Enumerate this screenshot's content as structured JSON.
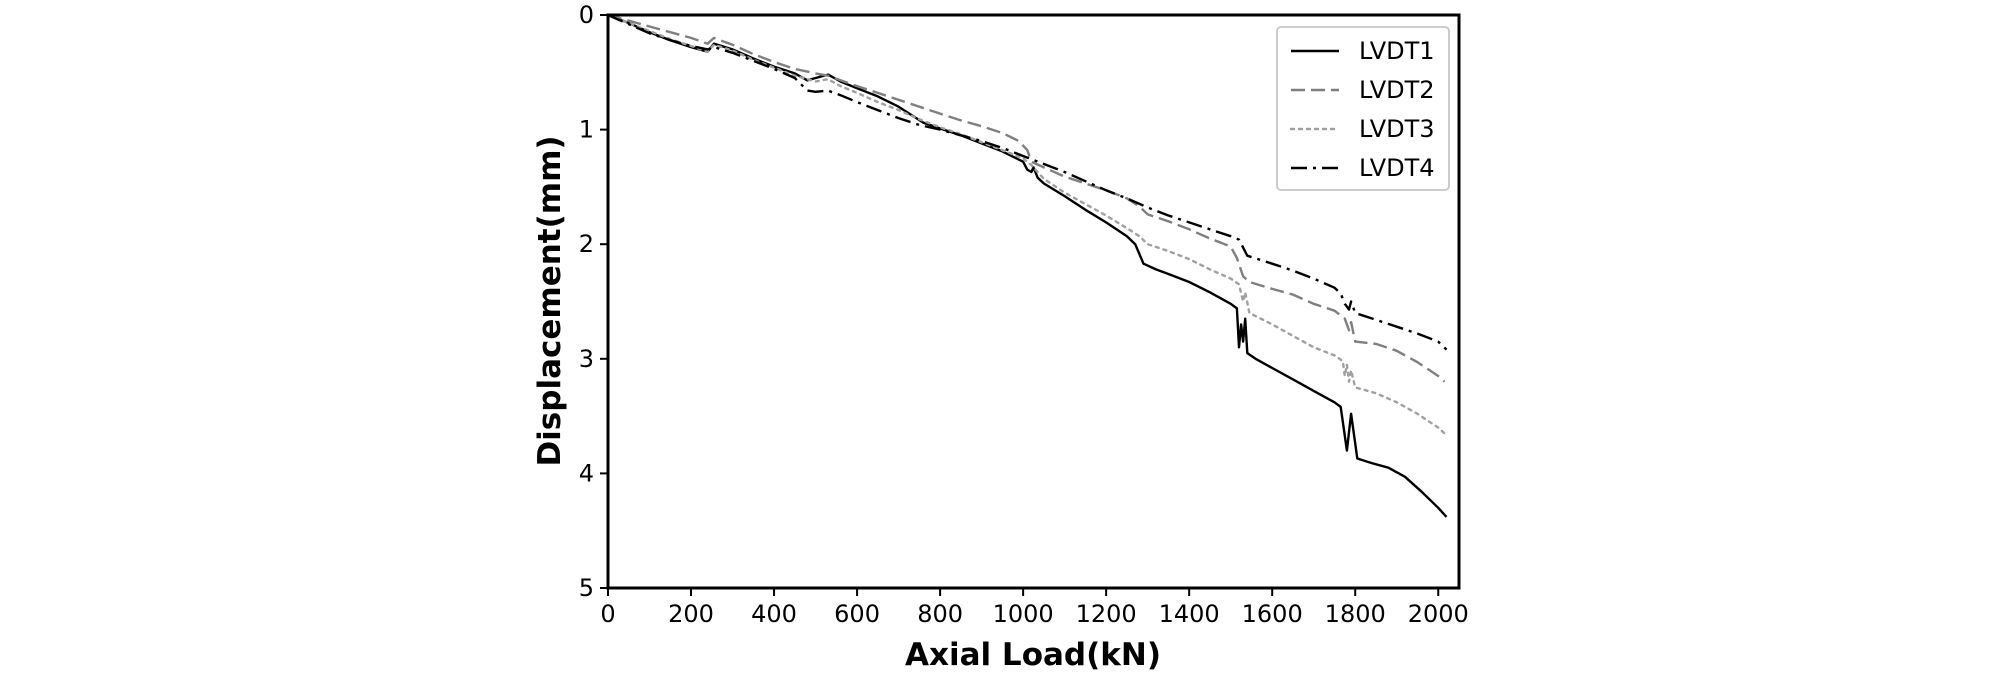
{
  "chart_data": {
    "type": "line",
    "xlabel": "Axial Load(kN)",
    "ylabel": "Displacement(mm)",
    "xlim": [
      0,
      2050
    ],
    "ylim": [
      0,
      5
    ],
    "y_inverted": true,
    "xticks": [
      0,
      200,
      400,
      600,
      800,
      1000,
      1200,
      1400,
      1600,
      1800,
      2000
    ],
    "yticks": [
      0,
      1,
      2,
      3,
      4,
      5
    ],
    "grid": false,
    "legend_position": "top-right",
    "series": [
      {
        "name": "LVDT1",
        "style": "solid",
        "color": "#000000",
        "points": [
          [
            0,
            0
          ],
          [
            50,
            0.07
          ],
          [
            100,
            0.15
          ],
          [
            150,
            0.22
          ],
          [
            200,
            0.28
          ],
          [
            240,
            0.32
          ],
          [
            255,
            0.25
          ],
          [
            300,
            0.3
          ],
          [
            350,
            0.38
          ],
          [
            400,
            0.45
          ],
          [
            450,
            0.51
          ],
          [
            480,
            0.57
          ],
          [
            500,
            0.55
          ],
          [
            530,
            0.52
          ],
          [
            560,
            0.58
          ],
          [
            600,
            0.64
          ],
          [
            650,
            0.71
          ],
          [
            700,
            0.8
          ],
          [
            730,
            0.87
          ],
          [
            760,
            0.94
          ],
          [
            800,
            0.99
          ],
          [
            850,
            1.05
          ],
          [
            900,
            1.12
          ],
          [
            950,
            1.19
          ],
          [
            1000,
            1.28
          ],
          [
            1010,
            1.35
          ],
          [
            1020,
            1.37
          ],
          [
            1025,
            1.33
          ],
          [
            1035,
            1.42
          ],
          [
            1050,
            1.47
          ],
          [
            1100,
            1.58
          ],
          [
            1150,
            1.7
          ],
          [
            1200,
            1.81
          ],
          [
            1250,
            1.93
          ],
          [
            1270,
            2.0
          ],
          [
            1290,
            2.17
          ],
          [
            1320,
            2.22
          ],
          [
            1350,
            2.26
          ],
          [
            1400,
            2.33
          ],
          [
            1450,
            2.42
          ],
          [
            1500,
            2.52
          ],
          [
            1515,
            2.56
          ],
          [
            1520,
            2.9
          ],
          [
            1525,
            2.7
          ],
          [
            1530,
            2.85
          ],
          [
            1535,
            2.65
          ],
          [
            1540,
            2.95
          ],
          [
            1560,
            3.0
          ],
          [
            1600,
            3.08
          ],
          [
            1650,
            3.18
          ],
          [
            1700,
            3.28
          ],
          [
            1750,
            3.38
          ],
          [
            1765,
            3.42
          ],
          [
            1780,
            3.8
          ],
          [
            1790,
            3.48
          ],
          [
            1805,
            3.87
          ],
          [
            1840,
            3.91
          ],
          [
            1880,
            3.95
          ],
          [
            1920,
            4.03
          ],
          [
            1960,
            4.16
          ],
          [
            2000,
            4.3
          ],
          [
            2020,
            4.38
          ]
        ]
      },
      {
        "name": "LVDT2",
        "style": "dashed",
        "color": "#7f7f7f",
        "points": [
          [
            0,
            0
          ],
          [
            50,
            0.05
          ],
          [
            100,
            0.1
          ],
          [
            150,
            0.15
          ],
          [
            200,
            0.2
          ],
          [
            240,
            0.25
          ],
          [
            255,
            0.2
          ],
          [
            300,
            0.26
          ],
          [
            350,
            0.34
          ],
          [
            400,
            0.41
          ],
          [
            450,
            0.47
          ],
          [
            500,
            0.51
          ],
          [
            530,
            0.53
          ],
          [
            560,
            0.57
          ],
          [
            600,
            0.62
          ],
          [
            650,
            0.68
          ],
          [
            700,
            0.74
          ],
          [
            750,
            0.8
          ],
          [
            800,
            0.86
          ],
          [
            850,
            0.92
          ],
          [
            900,
            0.97
          ],
          [
            950,
            1.03
          ],
          [
            990,
            1.1
          ],
          [
            1010,
            1.18
          ],
          [
            1020,
            1.28
          ],
          [
            1050,
            1.33
          ],
          [
            1100,
            1.41
          ],
          [
            1150,
            1.47
          ],
          [
            1200,
            1.53
          ],
          [
            1250,
            1.6
          ],
          [
            1280,
            1.67
          ],
          [
            1300,
            1.74
          ],
          [
            1350,
            1.8
          ],
          [
            1400,
            1.87
          ],
          [
            1450,
            1.95
          ],
          [
            1500,
            2.02
          ],
          [
            1515,
            2.12
          ],
          [
            1530,
            2.28
          ],
          [
            1545,
            2.33
          ],
          [
            1600,
            2.39
          ],
          [
            1650,
            2.44
          ],
          [
            1700,
            2.52
          ],
          [
            1750,
            2.58
          ],
          [
            1775,
            2.65
          ],
          [
            1785,
            2.75
          ],
          [
            1790,
            2.68
          ],
          [
            1800,
            2.85
          ],
          [
            1850,
            2.87
          ],
          [
            1900,
            2.93
          ],
          [
            1950,
            3.03
          ],
          [
            2000,
            3.15
          ],
          [
            2015,
            3.2
          ]
        ]
      },
      {
        "name": "LVDT3",
        "style": "dotted",
        "color": "#a0a0a0",
        "points": [
          [
            0,
            0
          ],
          [
            50,
            0.07
          ],
          [
            100,
            0.14
          ],
          [
            150,
            0.21
          ],
          [
            200,
            0.27
          ],
          [
            240,
            0.32
          ],
          [
            255,
            0.26
          ],
          [
            300,
            0.31
          ],
          [
            350,
            0.39
          ],
          [
            400,
            0.46
          ],
          [
            450,
            0.53
          ],
          [
            500,
            0.58
          ],
          [
            530,
            0.56
          ],
          [
            560,
            0.62
          ],
          [
            600,
            0.68
          ],
          [
            650,
            0.76
          ],
          [
            700,
            0.83
          ],
          [
            750,
            0.91
          ],
          [
            800,
            0.98
          ],
          [
            850,
            1.04
          ],
          [
            900,
            1.11
          ],
          [
            950,
            1.18
          ],
          [
            1000,
            1.25
          ],
          [
            1020,
            1.31
          ],
          [
            1050,
            1.43
          ],
          [
            1100,
            1.55
          ],
          [
            1150,
            1.65
          ],
          [
            1200,
            1.75
          ],
          [
            1250,
            1.86
          ],
          [
            1280,
            1.93
          ],
          [
            1300,
            2.0
          ],
          [
            1350,
            2.06
          ],
          [
            1400,
            2.13
          ],
          [
            1450,
            2.22
          ],
          [
            1500,
            2.3
          ],
          [
            1520,
            2.35
          ],
          [
            1530,
            2.5
          ],
          [
            1535,
            2.42
          ],
          [
            1545,
            2.6
          ],
          [
            1600,
            2.7
          ],
          [
            1650,
            2.8
          ],
          [
            1700,
            2.9
          ],
          [
            1750,
            2.97
          ],
          [
            1770,
            3.02
          ],
          [
            1775,
            3.15
          ],
          [
            1780,
            3.05
          ],
          [
            1785,
            3.2
          ],
          [
            1790,
            3.1
          ],
          [
            1800,
            3.25
          ],
          [
            1850,
            3.3
          ],
          [
            1900,
            3.38
          ],
          [
            1950,
            3.48
          ],
          [
            2000,
            3.6
          ],
          [
            2015,
            3.65
          ]
        ]
      },
      {
        "name": "LVDT4",
        "style": "dashdot",
        "color": "#000000",
        "points": [
          [
            0,
            0
          ],
          [
            50,
            0.08
          ],
          [
            100,
            0.16
          ],
          [
            150,
            0.22
          ],
          [
            200,
            0.27
          ],
          [
            240,
            0.3
          ],
          [
            255,
            0.28
          ],
          [
            300,
            0.33
          ],
          [
            350,
            0.4
          ],
          [
            400,
            0.47
          ],
          [
            450,
            0.55
          ],
          [
            480,
            0.66
          ],
          [
            500,
            0.67
          ],
          [
            530,
            0.66
          ],
          [
            560,
            0.7
          ],
          [
            600,
            0.76
          ],
          [
            650,
            0.83
          ],
          [
            700,
            0.9
          ],
          [
            750,
            0.96
          ],
          [
            800,
            1.0
          ],
          [
            850,
            1.05
          ],
          [
            900,
            1.1
          ],
          [
            950,
            1.16
          ],
          [
            1000,
            1.23
          ],
          [
            1050,
            1.3
          ],
          [
            1100,
            1.37
          ],
          [
            1150,
            1.45
          ],
          [
            1200,
            1.53
          ],
          [
            1250,
            1.6
          ],
          [
            1300,
            1.68
          ],
          [
            1350,
            1.75
          ],
          [
            1400,
            1.81
          ],
          [
            1450,
            1.87
          ],
          [
            1500,
            1.93
          ],
          [
            1520,
            1.96
          ],
          [
            1540,
            2.1
          ],
          [
            1600,
            2.17
          ],
          [
            1650,
            2.23
          ],
          [
            1700,
            2.3
          ],
          [
            1750,
            2.38
          ],
          [
            1765,
            2.43
          ],
          [
            1775,
            2.52
          ],
          [
            1785,
            2.57
          ],
          [
            1790,
            2.5
          ],
          [
            1800,
            2.6
          ],
          [
            1850,
            2.66
          ],
          [
            1900,
            2.72
          ],
          [
            1950,
            2.78
          ],
          [
            2000,
            2.85
          ],
          [
            2020,
            2.92
          ]
        ]
      }
    ]
  }
}
